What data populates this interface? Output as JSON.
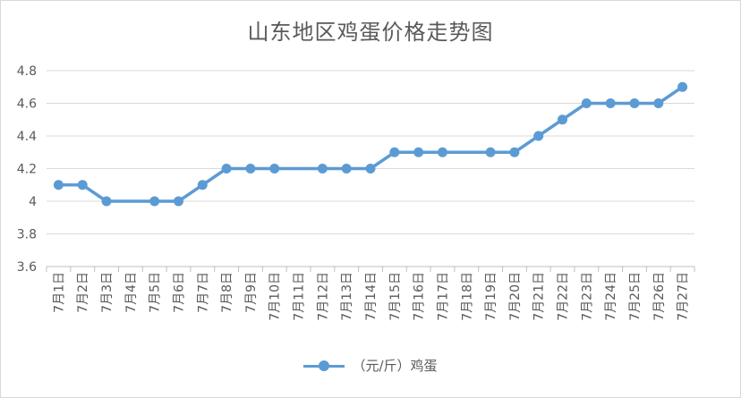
{
  "chart_data": {
    "type": "line",
    "title": "山东地区鸡蛋价格走势图",
    "xlabel": "",
    "ylabel": "",
    "categories": [
      "7月1日",
      "7月2日",
      "7月3日",
      "7月4日",
      "7月5日",
      "7月6日",
      "7月7日",
      "7月8日",
      "7月9日",
      "7月10日",
      "7月11日",
      "7月12日",
      "7月13日",
      "7月14日",
      "7月15日",
      "7月16日",
      "7月17日",
      "7月18日",
      "7月19日",
      "7月20日",
      "7月21日",
      "7月22日",
      "7月23日",
      "7月24日",
      "7月25日",
      "7月26日",
      "7月27日"
    ],
    "series": [
      {
        "name": "（元/斤）鸡蛋",
        "values": [
          4.1,
          4.1,
          4.0,
          null,
          4.0,
          4.0,
          4.1,
          4.2,
          4.2,
          4.2,
          null,
          4.2,
          4.2,
          4.2,
          4.3,
          4.3,
          4.3,
          null,
          4.3,
          4.3,
          4.4,
          4.5,
          4.6,
          4.6,
          4.6,
          4.6,
          4.7
        ],
        "color": "#5b9bd5"
      }
    ],
    "ylim": [
      3.6,
      4.8
    ],
    "yticks": [
      "3.6",
      "3.8",
      "4",
      "4.2",
      "4.4",
      "4.6",
      "4.8"
    ],
    "grid": true,
    "legend": "bottom"
  }
}
